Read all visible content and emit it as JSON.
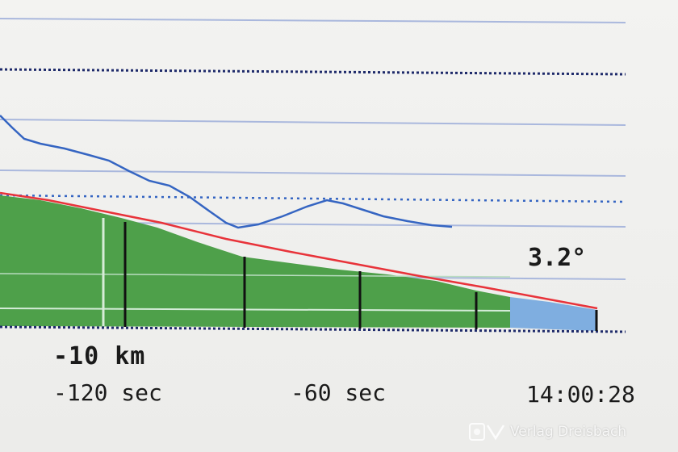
{
  "display": {
    "distance_label": "-10 km",
    "time_labels": [
      "-120 sec",
      "-60 sec"
    ],
    "clock": "14:00:28",
    "angle": "3.2°"
  },
  "colors": {
    "terrain": "#4ea04a",
    "terrain_end": "#7faee0",
    "path_line": "#e8333a",
    "trace_line": "#3565c2",
    "grid": "#aab8dd",
    "axis": "#1e2a6a"
  },
  "watermark": {
    "text": "Verlag Dreisbach"
  }
}
